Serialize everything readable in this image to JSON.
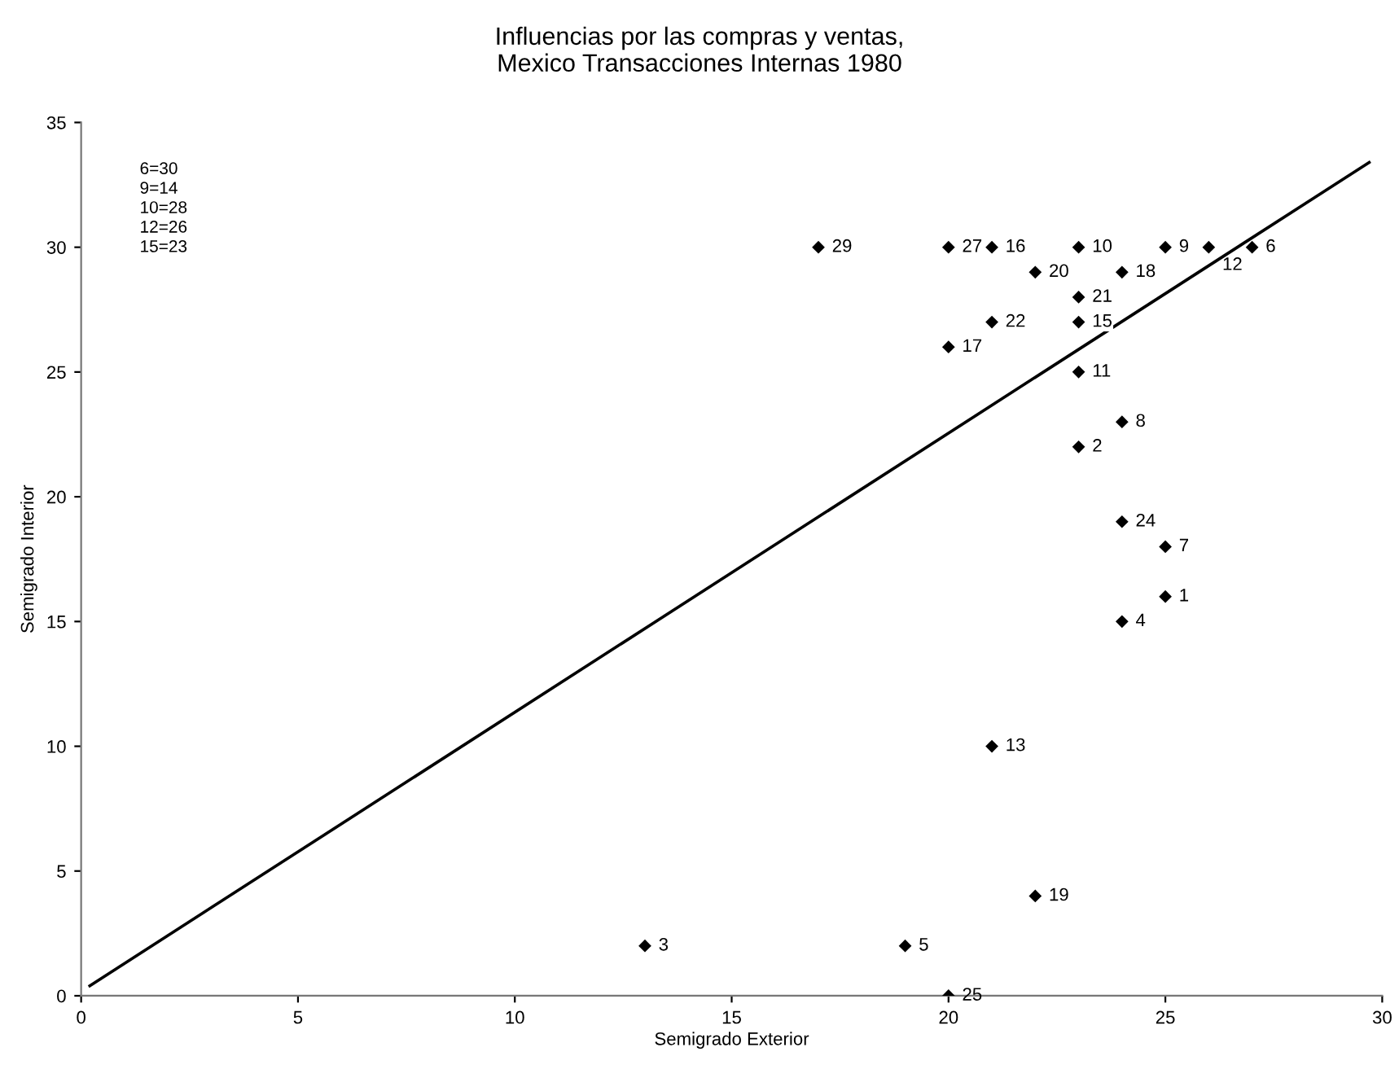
{
  "chart_data": {
    "type": "scatter",
    "title": "Influencias por las compras y ventas,\nMexico Transacciones Internas 1980",
    "xlabel": "Semigrado Exterior",
    "ylabel": "Semigrado Interior",
    "x": [
      25,
      23,
      13,
      24,
      19,
      27,
      25,
      24,
      25,
      23,
      23,
      26,
      21,
      23,
      21,
      20,
      24,
      22,
      22,
      23,
      21,
      24,
      20,
      20,
      17
    ],
    "values": [
      16,
      22,
      2,
      15,
      2,
      30,
      18,
      23,
      30,
      30,
      25,
      30,
      10,
      27,
      30,
      26,
      29,
      4,
      29,
      28,
      27,
      19,
      0,
      30,
      30
    ],
    "color": "#000000",
    "marker": "diamond",
    "series": [
      {
        "type": "line",
        "x": [
          0.2,
          29.7
        ],
        "values": [
          0.4,
          33.4
        ],
        "color": "#000000",
        "line_style": "solid",
        "marker": "none"
      }
    ],
    "xlim": [
      0,
      30
    ],
    "ylim": [
      0,
      35
    ],
    "xticks": [
      0,
      5,
      10,
      15,
      20,
      25,
      30
    ],
    "yticks": [
      0,
      5,
      10,
      15,
      20,
      25,
      30,
      35
    ],
    "grid": false,
    "legend": false,
    "annotations": [
      {
        "text": "1",
        "x": 25,
        "y": 16
      },
      {
        "text": "2",
        "x": 23,
        "y": 22
      },
      {
        "text": "3",
        "x": 13,
        "y": 2
      },
      {
        "text": "4",
        "x": 24,
        "y": 15
      },
      {
        "text": "5",
        "x": 19,
        "y": 2
      },
      {
        "text": "6",
        "x": 27,
        "y": 30
      },
      {
        "text": "7",
        "x": 25,
        "y": 18
      },
      {
        "text": "8",
        "x": 24,
        "y": 23
      },
      {
        "text": "9",
        "x": 25,
        "y": 30
      },
      {
        "text": "10",
        "x": 23,
        "y": 30
      },
      {
        "text": "11",
        "x": 23,
        "y": 25
      },
      {
        "text": "12",
        "x": 26,
        "y": 30
      },
      {
        "text": "13",
        "x": 21,
        "y": 10
      },
      {
        "text": "15",
        "x": 23,
        "y": 27
      },
      {
        "text": "16",
        "x": 21,
        "y": 30
      },
      {
        "text": "17",
        "x": 20,
        "y": 26
      },
      {
        "text": "18",
        "x": 24,
        "y": 29
      },
      {
        "text": "19",
        "x": 22,
        "y": 4
      },
      {
        "text": "20",
        "x": 22,
        "y": 29
      },
      {
        "text": "21",
        "x": 23,
        "y": 28
      },
      {
        "text": "22",
        "x": 21,
        "y": 27
      },
      {
        "text": "24",
        "x": 24,
        "y": 19
      },
      {
        "text": "25",
        "x": 20,
        "y": 0
      },
      {
        "text": "27",
        "x": 20,
        "y": 30
      },
      {
        "text": "29",
        "x": 17,
        "y": 30
      },
      "6=30\n9=14\n10=28\n12=26\n15=23"
    ]
  }
}
